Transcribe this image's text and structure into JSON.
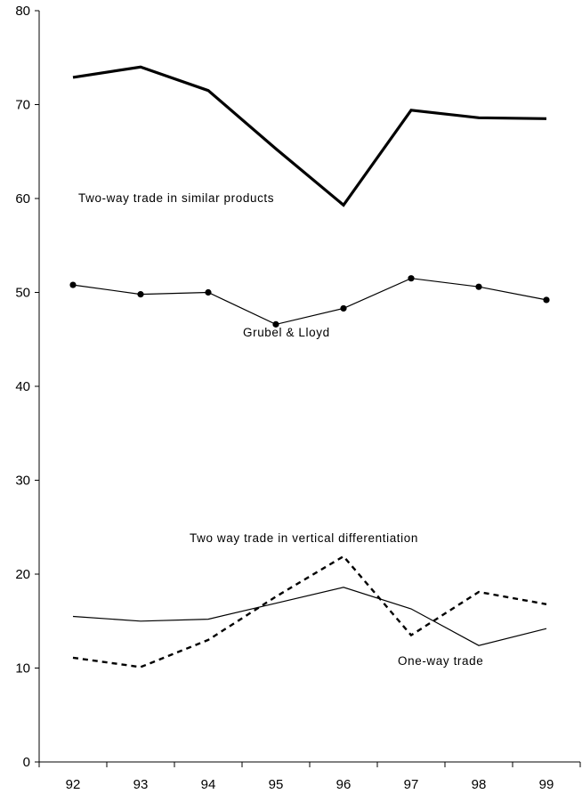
{
  "chart_data": {
    "type": "line",
    "title": "",
    "xlabel": "",
    "ylabel": "",
    "categories": [
      "92",
      "93",
      "94",
      "95",
      "96",
      "97",
      "98",
      "99"
    ],
    "ylim": [
      0,
      80
    ],
    "yticks": [
      0,
      10,
      20,
      30,
      40,
      50,
      60,
      70,
      80
    ],
    "grid": false,
    "series": [
      {
        "name": "Two-way trade in similar products",
        "style": "thick",
        "color": "#000000",
        "values": [
          72.9,
          74.0,
          71.5,
          65.3,
          59.3,
          69.4,
          68.6,
          68.5
        ]
      },
      {
        "name": "Grubel & Lloyd",
        "style": "markers",
        "color": "#000000",
        "values": [
          50.8,
          49.8,
          50.0,
          46.6,
          48.3,
          51.5,
          50.6,
          49.2
        ]
      },
      {
        "name": "Two way trade in vertical differentiation",
        "style": "dashed",
        "color": "#000000",
        "values": [
          11.1,
          10.1,
          13.0,
          17.6,
          21.9,
          13.5,
          18.1,
          16.8
        ]
      },
      {
        "name": "One-way trade",
        "style": "thin",
        "color": "#000000",
        "values": [
          15.5,
          15.0,
          15.2,
          16.9,
          18.6,
          16.3,
          12.4,
          14.2
        ]
      }
    ]
  }
}
